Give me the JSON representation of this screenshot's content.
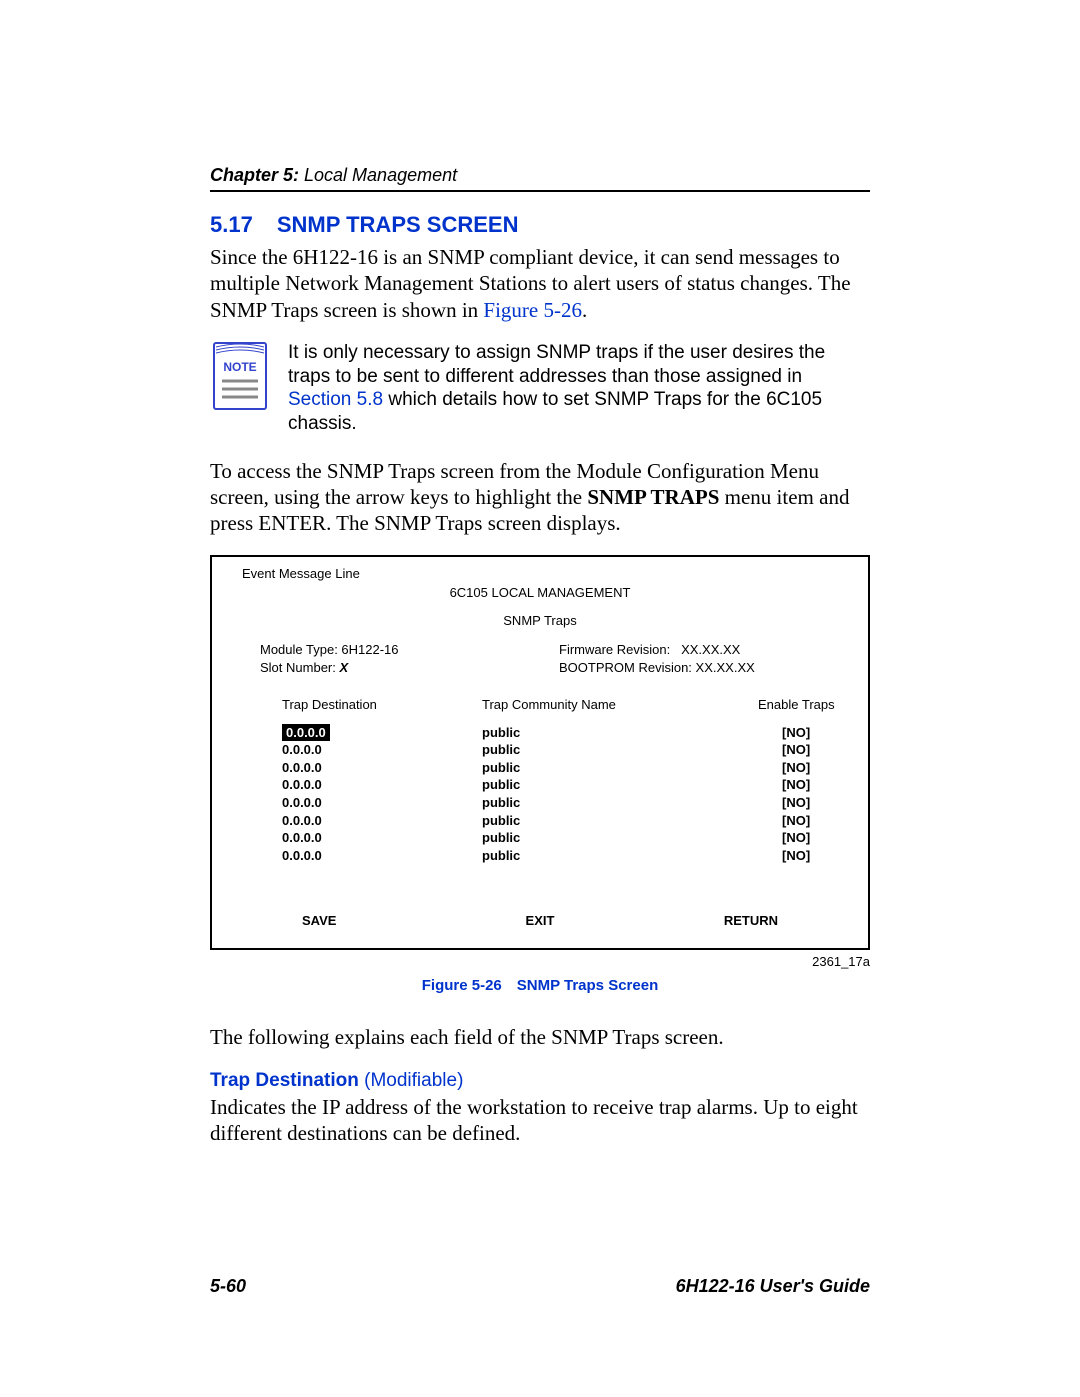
{
  "header": {
    "chapter_bold": "Chapter 5:",
    "chapter_title": " Local Management"
  },
  "section": {
    "number": "5.17",
    "title": "SNMP TRAPS SCREEN"
  },
  "intro_paragraph": {
    "pre": "Since the 6H122-16 is an SNMP compliant device, it can send messages to multiple Network Management Stations to alert users of status changes. The SNMP Traps screen is shown in ",
    "link": "Figure 5-26",
    "post": "."
  },
  "note": {
    "label": "NOTE",
    "pre": "It is only necessary to assign SNMP traps if the user desires the traps to be sent to different addresses than those assigned in ",
    "link": "Section 5.8",
    "post": " which details how to set SNMP Traps for the 6C105 chassis."
  },
  "access_paragraph": {
    "pre": "To access the SNMP Traps screen from the Module Configuration Menu screen, using the arrow keys to highlight the ",
    "bold": "SNMP TRAPS",
    "post": " menu item and press ENTER. The SNMP Traps screen displays."
  },
  "screen": {
    "event_line": "Event Message Line",
    "title1": "6C105 LOCAL MANAGEMENT",
    "title2": "SNMP Traps",
    "module_type_label": "Module Type: ",
    "module_type_value": "6H122-16",
    "slot_label": "Slot Number: ",
    "slot_value": "X",
    "fw_label": "Firmware Revision:",
    "fw_value": "XX.XX.XX",
    "bp_label": "BOOTPROM Revision: ",
    "bp_value": "XX.XX.XX",
    "col1": "Trap Destination",
    "col2": "Trap Community Name",
    "col3": "Enable Traps",
    "rows": [
      {
        "dest": "0.0.0.0",
        "comm": "public",
        "enable": "[NO]",
        "highlight": true
      },
      {
        "dest": "0.0.0.0",
        "comm": "public",
        "enable": "[NO]",
        "highlight": false
      },
      {
        "dest": "0.0.0.0",
        "comm": "public",
        "enable": "[NO]",
        "highlight": false
      },
      {
        "dest": "0.0.0.0",
        "comm": "public",
        "enable": "[NO]",
        "highlight": false
      },
      {
        "dest": "0.0.0.0",
        "comm": "public",
        "enable": "[NO]",
        "highlight": false
      },
      {
        "dest": "0.0.0.0",
        "comm": "public",
        "enable": "[NO]",
        "highlight": false
      },
      {
        "dest": "0.0.0.0",
        "comm": "public",
        "enable": "[NO]",
        "highlight": false
      },
      {
        "dest": "0.0.0.0",
        "comm": "public",
        "enable": "[NO]",
        "highlight": false
      }
    ],
    "btn_save": "SAVE",
    "btn_exit": "EXIT",
    "btn_return": "RETURN"
  },
  "figure_id": "2361_17a",
  "figure_caption": "Figure 5-26 SNMP Traps Screen",
  "explain_text": "The following explains each field of the SNMP Traps screen.",
  "field": {
    "name": "Trap Destination",
    "modifiable": " (Modifiable)",
    "desc": "Indicates the IP address of the workstation to receive trap alarms. Up to eight different destinations can be defined."
  },
  "footer": {
    "page": "5-60",
    "guide": "6H122-16 User's Guide"
  }
}
